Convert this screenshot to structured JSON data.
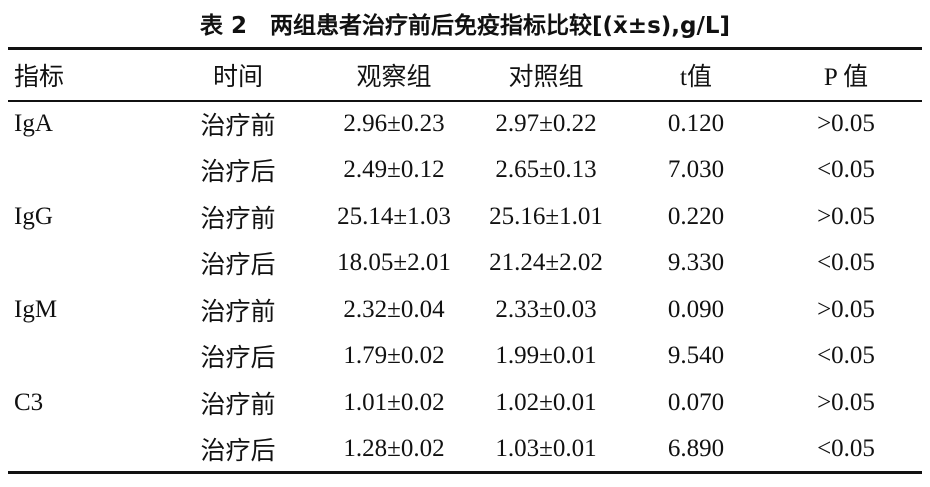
{
  "title": "表 2　两组患者治疗前后免疫指标比较[(x̄±s),g/L]",
  "table": {
    "headers": [
      "指标",
      "时间",
      "观察组",
      "对照组",
      "t值",
      "P 值"
    ],
    "groups": [
      {
        "name": "IgA",
        "rows": [
          [
            "治疗前",
            "2.96±0.23",
            "2.97±0.22",
            "0.120",
            ">0.05"
          ],
          [
            "治疗后",
            "2.49±0.12",
            "2.65±0.13",
            "7.030",
            "<0.05"
          ]
        ]
      },
      {
        "name": "IgG",
        "rows": [
          [
            "治疗前",
            "25.14±1.03",
            "25.16±1.01",
            "0.220",
            ">0.05"
          ],
          [
            "治疗后",
            "18.05±2.01",
            "21.24±2.02",
            "9.330",
            "<0.05"
          ]
        ]
      },
      {
        "name": "IgM",
        "rows": [
          [
            "治疗前",
            "2.32±0.04",
            "2.33±0.03",
            "0.090",
            ">0.05"
          ],
          [
            "治疗后",
            "1.79±0.02",
            "1.99±0.01",
            "9.540",
            "<0.05"
          ]
        ]
      },
      {
        "name": "C3",
        "rows": [
          [
            "治疗前",
            "1.01±0.02",
            "1.02±0.01",
            "0.070",
            ">0.05"
          ],
          [
            "治疗后",
            "1.28±0.02",
            "1.03±0.01",
            "6.890",
            "<0.05"
          ]
        ]
      }
    ]
  }
}
